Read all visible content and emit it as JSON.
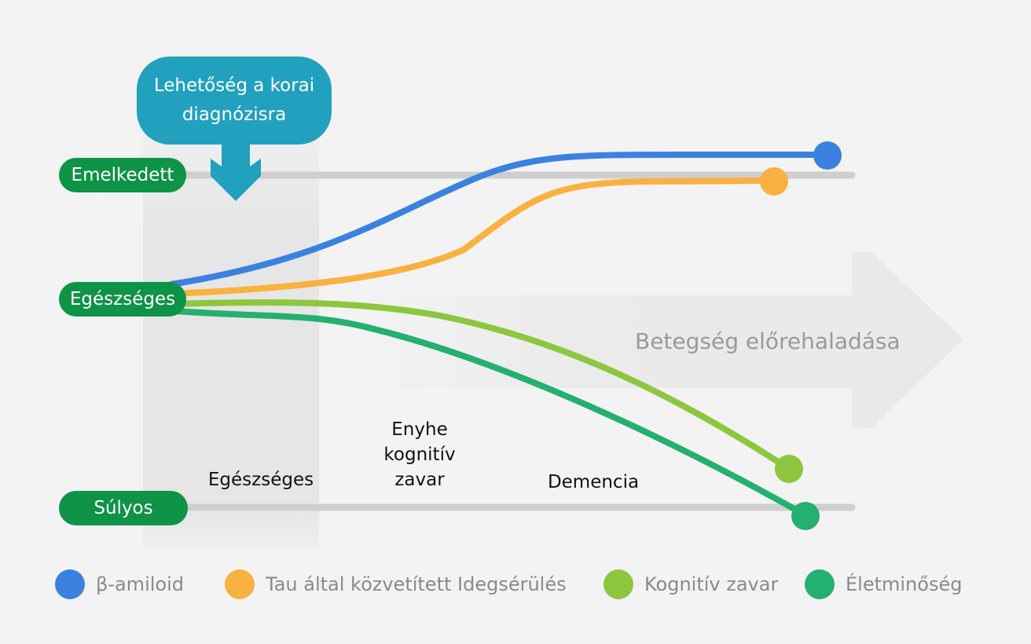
{
  "callout": {
    "line1": "Lehetőség a korai",
    "line2": "diagnózisra",
    "color": "#21a1be"
  },
  "levels": {
    "high": "Emelkedett",
    "healthy": "Egészséges",
    "severe": "Súlyos",
    "color": "#0e9347"
  },
  "stages": {
    "healthy": "Egészséges",
    "mci_line1": "Enyhe",
    "mci_line2": "kognitív",
    "mci_line3": "zavar",
    "dementia": "Demencia"
  },
  "progress_arrow": {
    "label": "Betegség előrehaladása"
  },
  "series": [
    {
      "name": "β-amiloid",
      "color": "#3b82e0"
    },
    {
      "name": "Tau által közvetített Idegsérülés",
      "color": "#f9b13f"
    },
    {
      "name": "Kognitív zavar",
      "color": "#8dc63f"
    },
    {
      "name": "Életminőség",
      "color": "#24b06e"
    }
  ]
}
